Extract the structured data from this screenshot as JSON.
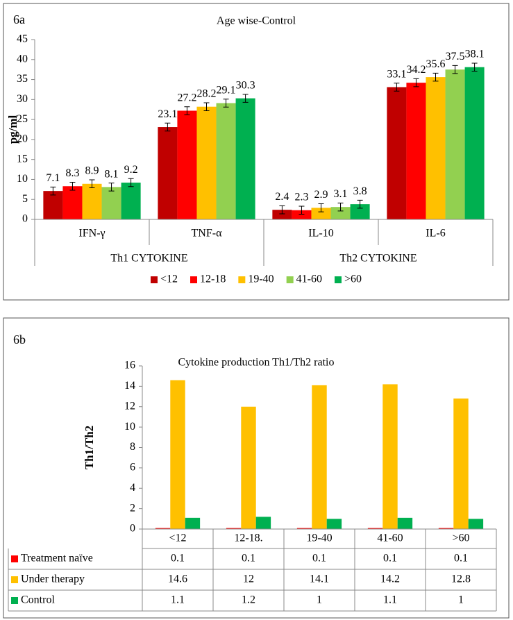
{
  "chart_data": [
    {
      "type": "bar",
      "label": "6a",
      "title": "Age wise-Control",
      "y_label": "pg/ml",
      "categories": [
        "IFN-γ",
        "TNF-α",
        "IL-10",
        "IL-6"
      ],
      "groups": [
        "Th1 CYTOKINE",
        "Th2 CYTOKINE"
      ],
      "series": [
        {
          "name": "<12",
          "color": "#C00000",
          "values": [
            7.1,
            23.1,
            2.4,
            33.1
          ],
          "errors": [
            1,
            1,
            1,
            1
          ]
        },
        {
          "name": "12-18",
          "color": "#FF0000",
          "values": [
            8.3,
            27.2,
            2.3,
            34.2
          ],
          "errors": [
            1,
            1,
            1,
            1
          ]
        },
        {
          "name": "19-40",
          "color": "#FFC000",
          "values": [
            8.9,
            28.2,
            2.9,
            35.6
          ],
          "errors": [
            1,
            1,
            1,
            1
          ]
        },
        {
          "name": "41-60",
          "color": "#92D050",
          "values": [
            8.1,
            29.1,
            3.1,
            37.5
          ],
          "errors": [
            1,
            1,
            1,
            1
          ]
        },
        {
          "name": ">60",
          "color": "#00B050",
          "values": [
            9.2,
            30.3,
            3.8,
            38.1
          ],
          "errors": [
            1,
            1,
            1,
            1
          ]
        }
      ],
      "ylim": [
        0,
        45
      ],
      "yticks": [
        0,
        5,
        10,
        15,
        20,
        25,
        30,
        35,
        40,
        45
      ],
      "data_labels": true,
      "legend": "bottom",
      "grid": false
    },
    {
      "type": "bar",
      "label": "6b",
      "title": "Cytokine production Th1/Th2 ratio",
      "y_label": "Th1/Th2",
      "categories": [
        "<12",
        "12-18.",
        "19-40",
        "41-60",
        ">60"
      ],
      "series": [
        {
          "name": "Treatment naïve",
          "color": "#FF0000",
          "values": [
            0.1,
            0.1,
            0.1,
            0.1,
            0.1
          ]
        },
        {
          "name": "Under therapy",
          "color": "#FFC000",
          "values": [
            14.6,
            12,
            14.1,
            14.2,
            12.8
          ]
        },
        {
          "name": "Control",
          "color": "#00B050",
          "values": [
            1.1,
            1.2,
            1,
            1.1,
            1
          ]
        }
      ],
      "ylim": [
        0,
        16
      ],
      "yticks": [
        0,
        2,
        4,
        6,
        8,
        10,
        12,
        14,
        16
      ],
      "data_table": true,
      "grid": false
    }
  ]
}
